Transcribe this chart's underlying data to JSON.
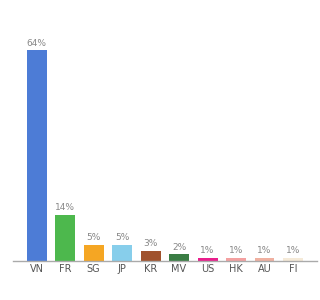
{
  "categories": [
    "VN",
    "FR",
    "SG",
    "JP",
    "KR",
    "MV",
    "US",
    "HK",
    "AU",
    "FI"
  ],
  "values": [
    64,
    14,
    5,
    5,
    3,
    2,
    1,
    1,
    1,
    1
  ],
  "bar_colors": [
    "#4d7cd6",
    "#4db84d",
    "#f5a623",
    "#87ceeb",
    "#a0522d",
    "#3a7d44",
    "#e91e8c",
    "#f4a0a0",
    "#f0b0a0",
    "#f5ead8"
  ],
  "labels": [
    "64%",
    "14%",
    "5%",
    "5%",
    "3%",
    "2%",
    "1%",
    "1%",
    "1%",
    "1%"
  ],
  "ylim": [
    0,
    72
  ],
  "background_color": "#ffffff",
  "label_color": "#888888",
  "tick_color": "#555555"
}
